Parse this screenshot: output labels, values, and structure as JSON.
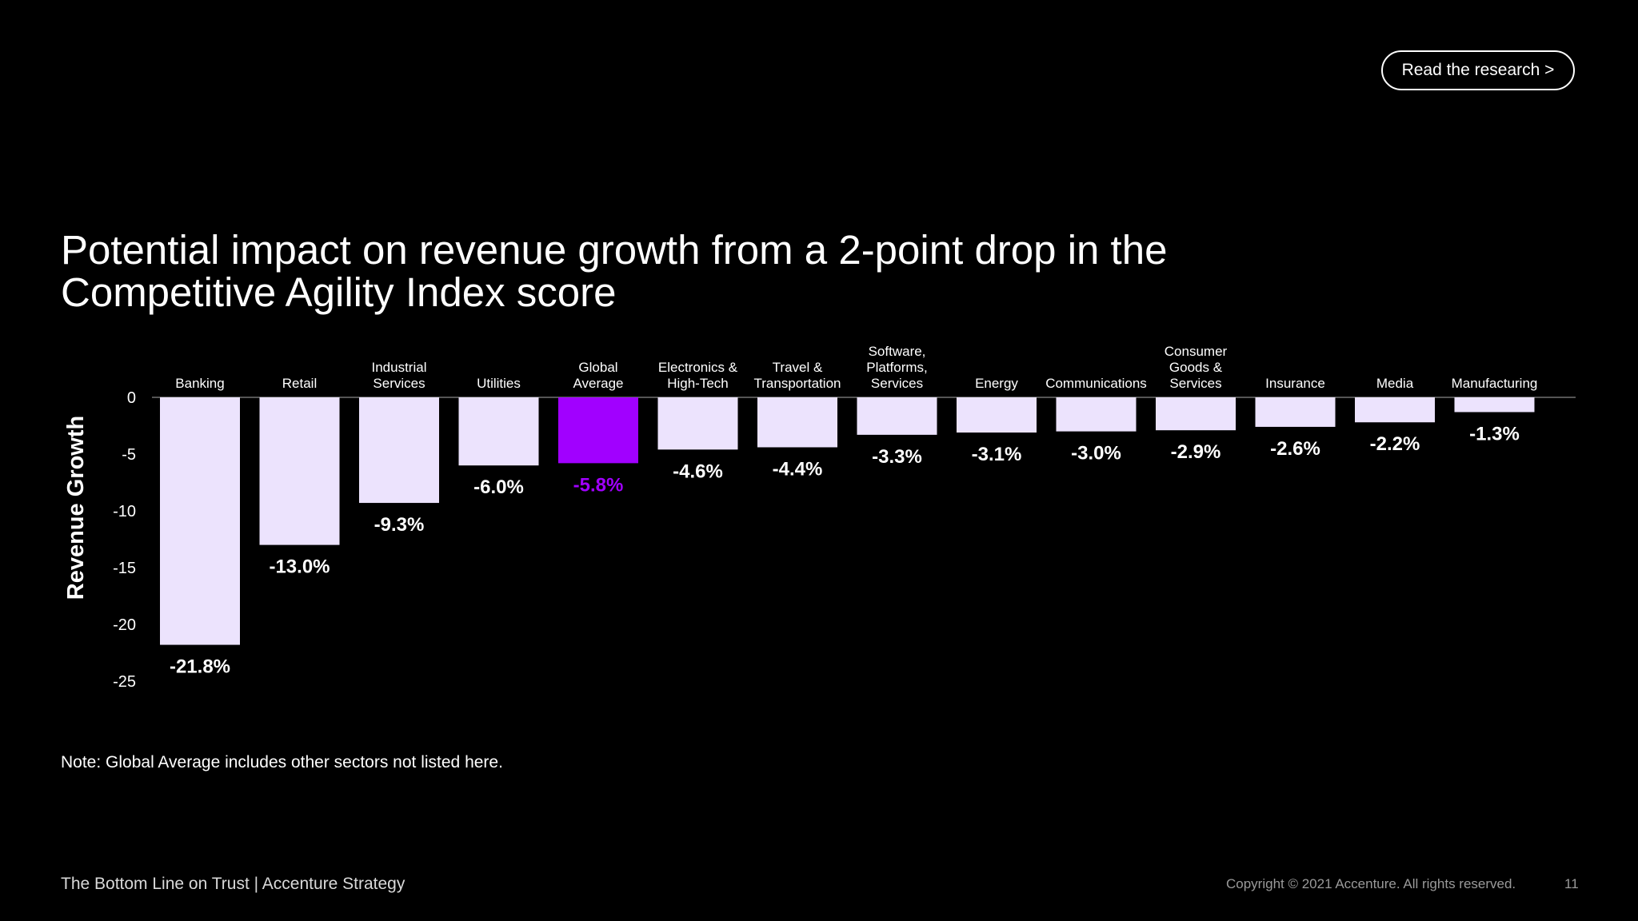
{
  "header": {
    "read_button": "Read the research >"
  },
  "title": "Potential impact on revenue growth from a 2-point drop in the Competitive Agility Index score",
  "note": "Note: Global Average includes other sectors not listed here.",
  "footer": {
    "left": "The Bottom Line on Trust | Accenture Strategy",
    "copyright": "Copyright © 2021 Accenture. All rights reserved.",
    "page_number": "11"
  },
  "colors": {
    "bar": "#ece3fd",
    "highlight": "#a100ff",
    "background": "#000000"
  },
  "chart_data": {
    "type": "bar",
    "ylabel": "Revenue Growth",
    "ylim": [
      -25,
      0
    ],
    "yticks": [
      0,
      -5,
      -10,
      -15,
      -20,
      -25
    ],
    "categories": [
      [
        "Banking"
      ],
      [
        "Retail"
      ],
      [
        "Industrial",
        "Services"
      ],
      [
        "Utilities"
      ],
      [
        "Global",
        "Average"
      ],
      [
        "Electronics &",
        "High-Tech"
      ],
      [
        "Travel &",
        "Transportation"
      ],
      [
        "Software,",
        "Platforms,",
        "Services"
      ],
      [
        "Energy"
      ],
      [
        "Communications"
      ],
      [
        "Consumer",
        "Goods &",
        "Services"
      ],
      [
        "Insurance"
      ],
      [
        "Media"
      ],
      [
        "Manufacturing"
      ]
    ],
    "values": [
      -21.8,
      -13.0,
      -9.3,
      -6.0,
      -5.8,
      -4.6,
      -4.4,
      -3.3,
      -3.1,
      -3.0,
      -2.9,
      -2.6,
      -2.2,
      -1.3
    ],
    "labels": [
      "-21.8%",
      "-13.0%",
      "-9.3%",
      "-6.0%",
      "-5.8%",
      "-4.6%",
      "-4.4%",
      "-3.3%",
      "-3.1%",
      "-3.0%",
      "-2.9%",
      "-2.6%",
      "-2.2%",
      "-1.3%"
    ],
    "highlight_index": 4,
    "grid": false
  }
}
